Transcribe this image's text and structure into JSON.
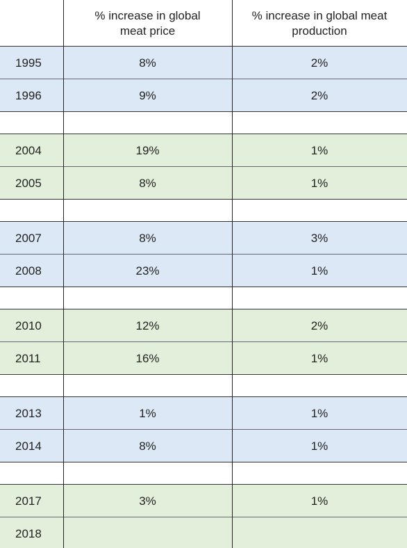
{
  "table": {
    "columns": [
      "% increase in global meat price",
      "% increase in global meat production"
    ],
    "rows": [
      {
        "year": "1995",
        "price": "8%",
        "production": "2%"
      },
      {
        "year": "1996",
        "price": "9%",
        "production": "2%"
      },
      {
        "year": "2004",
        "price": "19%",
        "production": "1%"
      },
      {
        "year": "2005",
        "price": "8%",
        "production": "1%"
      },
      {
        "year": "2007",
        "price": "8%",
        "production": "3%"
      },
      {
        "year": "2008",
        "price": "23%",
        "production": "1%"
      },
      {
        "year": "2010",
        "price": "12%",
        "production": "2%"
      },
      {
        "year": "2011",
        "price": "16%",
        "production": "1%"
      },
      {
        "year": "2013",
        "price": "1%",
        "production": "1%"
      },
      {
        "year": "2014",
        "price": "8%",
        "production": "1%"
      },
      {
        "year": "2017",
        "price": "3%",
        "production": "1%"
      },
      {
        "year": "2018"
      }
    ]
  }
}
